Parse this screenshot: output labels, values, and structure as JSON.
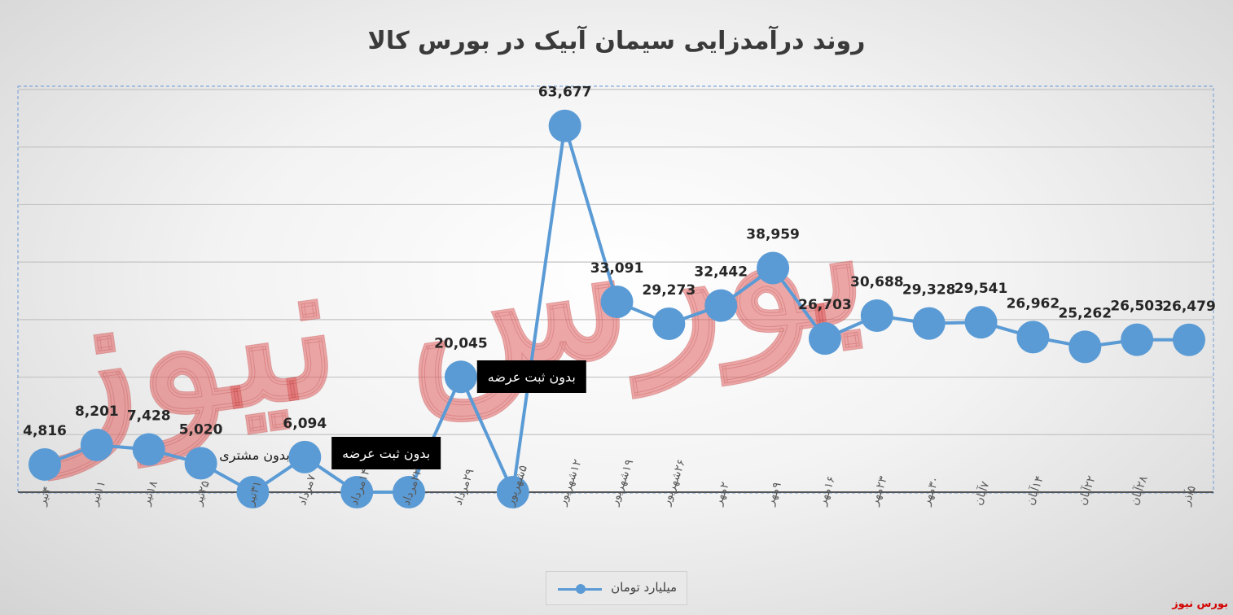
{
  "chart_data": {
    "type": "line",
    "title": "روند درآمدزایی سیمان آبیک در بورس کالا",
    "categories": [
      "۴تیر",
      "۱۱تیر",
      "۱۸تیر",
      "۲۵تیر",
      "۳۱تیر",
      "۷مرداد",
      "۱۴مرداد",
      "۲۲مرداد",
      "۲۹مرداد",
      "۵شهریور",
      "۱۲شهریور",
      "۱۹شهریور",
      "۲۶شهریور",
      "۲مهر",
      "۹مهر",
      "۱۶مهر",
      "۲۳مهر",
      "۳۰مهر",
      "۷آبان",
      "۱۴آبان",
      "۲۲آبان",
      "۲۸آبان",
      "۵آذر"
    ],
    "series": [
      {
        "name": "میلیارد تومان",
        "color": "#5b9bd5",
        "values": [
          4816,
          8201,
          7428,
          5020,
          0,
          6094,
          0,
          0,
          20045,
          0,
          63677,
          33091,
          29273,
          32442,
          38959,
          26703,
          30688,
          29328,
          29541,
          26962,
          25262,
          26503,
          26479
        ],
        "data_labels": [
          "4,816",
          "8,201",
          "7,428",
          "5,020",
          "",
          "6,094",
          "",
          "",
          "20,045",
          "",
          "63,677",
          "33,091",
          "29,273",
          "32,442",
          "38,959",
          "26,703",
          "30,688",
          "29,328",
          "29,541",
          "26,962",
          "25,262",
          "26,503",
          "26,479"
        ]
      }
    ],
    "annotations": [
      {
        "text": "بدون مشتری",
        "index": 4,
        "style": "plain"
      },
      {
        "text": "بدون ثبت عرضه",
        "index": 6,
        "style": "box"
      },
      {
        "text": "بدون ثبت عرضه",
        "index": 9,
        "style": "box"
      }
    ],
    "ylim": [
      0,
      70000
    ],
    "grid": true,
    "legend_position": "bottom"
  },
  "legend": {
    "label": "میلیارد تومان"
  },
  "watermark": {
    "text": "بورس نیوز"
  },
  "brand": {
    "text": "بورس نیوز"
  }
}
